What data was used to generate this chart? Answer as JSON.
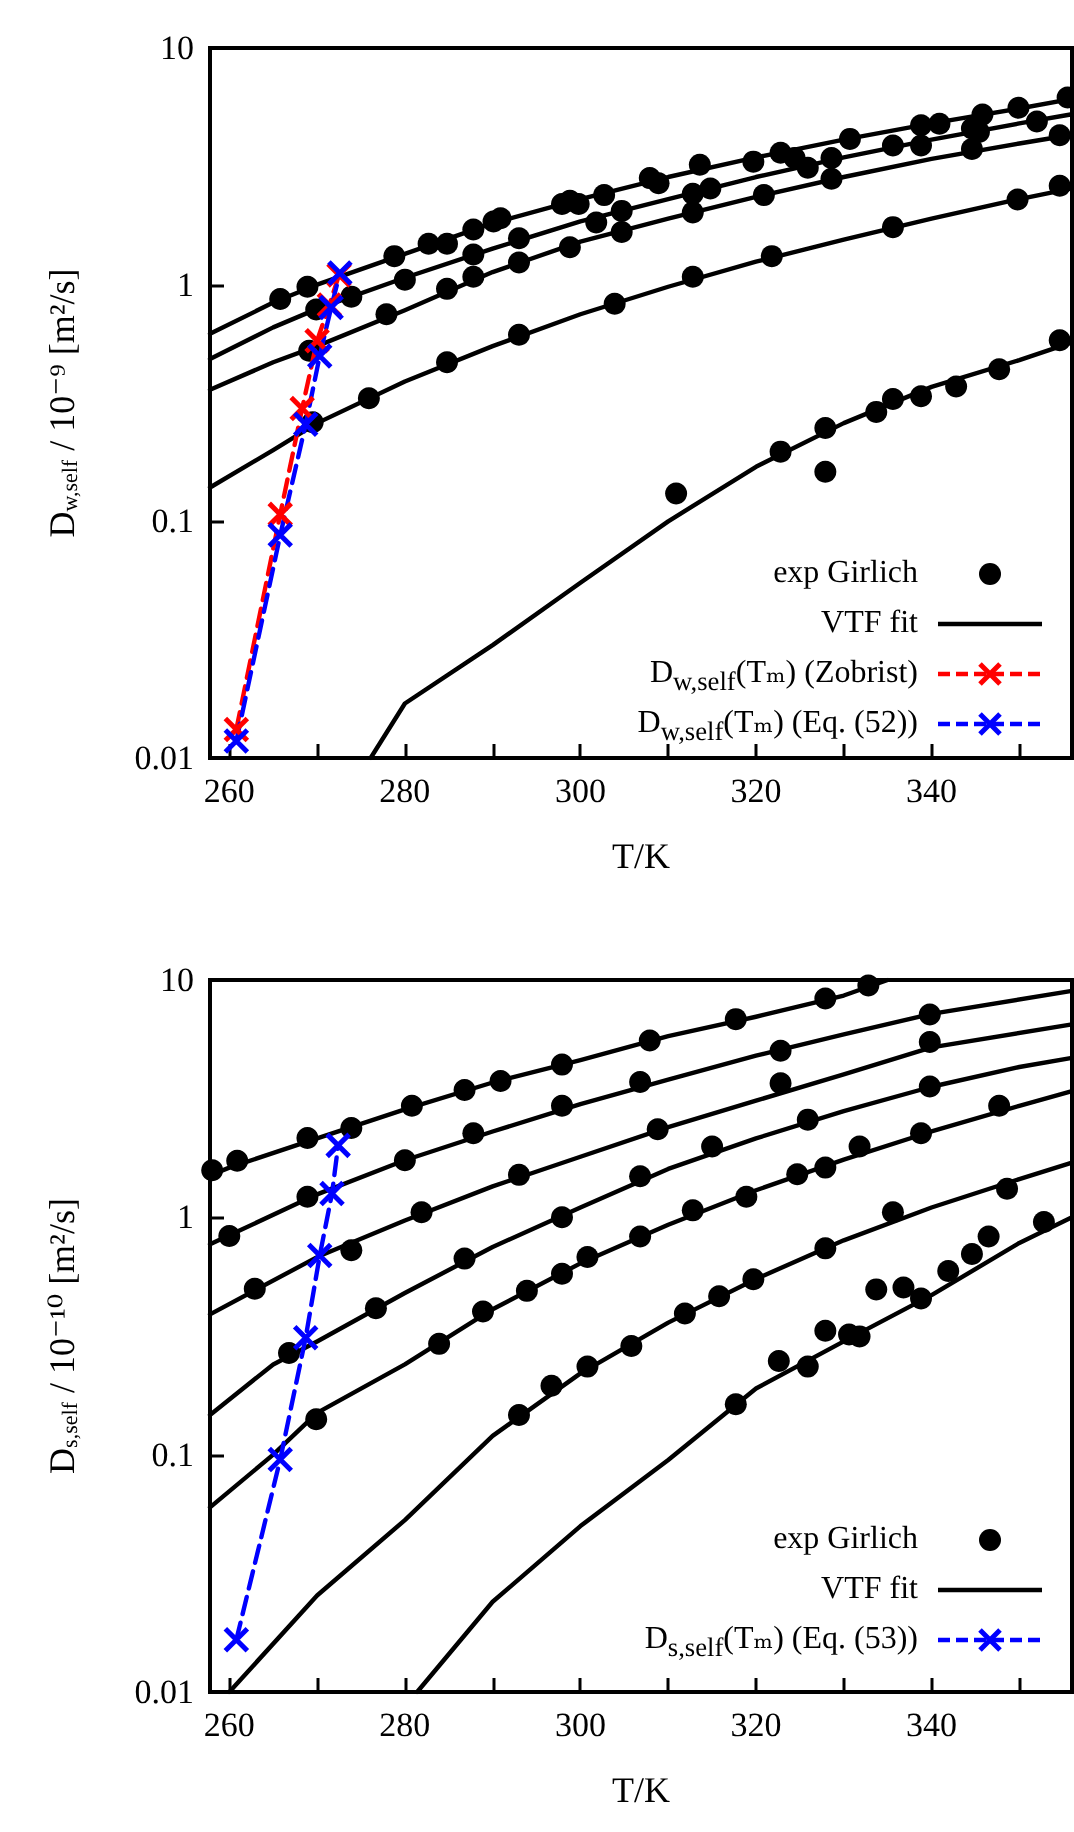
{
  "chart_data": [
    {
      "type": "scatter",
      "xlabel": "T/K",
      "ylabel": "D$_{w,self}$ / 10⁻⁹ [m²/s]",
      "xlim": [
        257.8,
        356
      ],
      "ylim": [
        0.01,
        10
      ],
      "xticks": [
        260,
        {
          "value": 270,
          "label": null
        },
        280,
        {
          "value": 290,
          "label": null
        },
        300,
        {
          "value": 310,
          "label": null
        },
        320,
        {
          "value": 330,
          "label": null
        },
        340,
        {
          "value": 350,
          "label": null
        }
      ],
      "yticks": [
        0.01,
        0.1,
        1,
        10
      ],
      "log": "y",
      "legend": "bottom right",
      "series": [
        {
          "name": "exp Girlich",
          "type": "scatter",
          "color": "#000000",
          "marker": "circle",
          "x": [
            265.8,
            268.9,
            273.9,
            278.8,
            282.7,
            284.8,
            287.8,
            290.1,
            290.9,
            297.9,
            298.8,
            299.8,
            302.7,
            307.9,
            308.9,
            313.6,
            319.7,
            322.8,
            324.4,
            325.9,
            328.6,
            330.7,
            338.8,
            340.9,
            345.4,
            345.8,
            349.9,
            355.5,
            269.9,
            280.0,
            287.8,
            293.0,
            301.8,
            304.7,
            312.8,
            314.8,
            335.6,
            338.8,
            344.6,
            352.0,
            269.1,
            277.9,
            284.8,
            287.8,
            293.0,
            298.8,
            304.7,
            312.8,
            320.9,
            328.6,
            344.6,
            354.6,
            269.5,
            275.9,
            284.8,
            293.0,
            303.9,
            312.8,
            321.8,
            335.6,
            349.8,
            354.6,
            310.9,
            322.8,
            327.9,
            327.9,
            333.7,
            335.6,
            338.8,
            342.8,
            347.7,
            354.6
          ],
          "values": [
            0.87,
            0.98,
            0.89,
            1.32,
            1.49,
            1.49,
            1.71,
            1.85,
            1.91,
            2.19,
            2.26,
            2.19,
            2.39,
            2.82,
            2.68,
            3.21,
            3.31,
            3.61,
            3.43,
            3.12,
            3.43,
            4.13,
            4.72,
            4.79,
            4.42,
            5.23,
            5.59,
            6.18,
            0.785,
            1.05,
            1.34,
            1.57,
            1.83,
            2.05,
            2.42,
            2.55,
            3.87,
            3.87,
            4.57,
            4.89,
            0.526,
            0.75,
            0.96,
            1.08,
            1.24,
            1.44,
            1.67,
            2.02,
            2.39,
            2.8,
            3.74,
            4.28,
            0.262,
            0.331,
            0.47,
            0.614,
            0.83,
            1.08,
            1.32,
            1.75,
            2.29,
            2.62,
            0.131,
            0.197,
            0.162,
            0.248,
            0.29,
            0.329,
            0.338,
            0.371,
            0.439,
            0.582
          ]
        },
        {
          "name": "VTF fit",
          "type": "line",
          "color": "#000000",
          "marker": "none",
          "line_style": "solid",
          "x": [
            257.8,
            265,
            270,
            280,
            290,
            300,
            310,
            320,
            330,
            340,
            350,
            356
          ],
          "values": [
            0.62,
            0.84,
            1.0,
            1.35,
            1.82,
            2.3,
            2.85,
            3.45,
            4.1,
            4.8,
            5.55,
            6.1
          ]
        },
        {
          "type": "line",
          "color": "#000000",
          "marker": "none",
          "line_style": "solid",
          "x": [
            257.8,
            265,
            270,
            280,
            290,
            300,
            310,
            320,
            330,
            340,
            350,
            356
          ],
          "values": [
            0.485,
            0.66,
            0.79,
            1.07,
            1.42,
            1.85,
            2.3,
            2.85,
            3.45,
            4.1,
            4.8,
            5.25
          ]
        },
        {
          "type": "line",
          "color": "#000000",
          "marker": "none",
          "line_style": "solid",
          "x": [
            257.8,
            265,
            270,
            280,
            290,
            300,
            310,
            320,
            330,
            340,
            350,
            356
          ],
          "values": [
            0.36,
            0.47,
            0.55,
            0.78,
            1.13,
            1.52,
            1.9,
            2.35,
            2.85,
            3.4,
            3.95,
            4.3
          ]
        },
        {
          "type": "line",
          "color": "#000000",
          "marker": "none",
          "line_style": "solid",
          "x": [
            257.8,
            265,
            270,
            280,
            290,
            300,
            310,
            320,
            330,
            340,
            350,
            356
          ],
          "values": [
            0.139,
            0.2,
            0.26,
            0.39,
            0.55,
            0.75,
            0.98,
            1.25,
            1.55,
            1.9,
            2.3,
            2.55
          ]
        },
        {
          "type": "line",
          "color": "#000000",
          "marker": "none",
          "line_style": "solid",
          "x": [
            276.1,
            280,
            290,
            300,
            310,
            320,
            330,
            340,
            350,
            356
          ],
          "values": [
            0.01,
            0.017,
            0.03,
            0.055,
            0.1,
            0.17,
            0.26,
            0.37,
            0.48,
            0.57
          ]
        },
        {
          "name": "D$_{w,self}$(Tₘ) (Zobrist)",
          "type": "line",
          "color": "#ff0000",
          "marker": "cross",
          "line_style": "dashed",
          "x": [
            260.8,
            265.8,
            268.3,
            270.0,
            271.4,
            272.5
          ],
          "values": [
            0.0132,
            0.107,
            0.3,
            0.58,
            0.82,
            1.1
          ]
        },
        {
          "name": "D$_{w,self}$(Tₘ) (Eq. (52))",
          "type": "line",
          "color": "#0000ff",
          "marker": "cross",
          "line_style": "dashed",
          "x": [
            260.8,
            265.8,
            268.7,
            270.3,
            271.6,
            272.6
          ],
          "values": [
            0.0118,
            0.0875,
            0.257,
            0.5,
            0.8,
            1.12
          ]
        }
      ]
    },
    {
      "type": "scatter",
      "xlabel": "T/K",
      "ylabel": "D$_{s,self}$ / 10⁻¹⁰ [m²/s]",
      "xlim": [
        257.8,
        356
      ],
      "ylim": [
        0.01,
        10
      ],
      "xticks": [
        260,
        {
          "value": 270,
          "label": null
        },
        280,
        {
          "value": 290,
          "label": null
        },
        300,
        {
          "value": 310,
          "label": null
        },
        320,
        {
          "value": 330,
          "label": null
        },
        340,
        {
          "value": 350,
          "label": null
        }
      ],
      "yticks": [
        0.01,
        0.1,
        1,
        10
      ],
      "log": "y",
      "legend": "bottom right",
      "series": [
        {
          "name": "exp Girlich",
          "type": "scatter",
          "color": "#000000",
          "marker": "circle",
          "x": [
            258.05,
            260.9,
            268.9,
            273.9,
            280.8,
            286.8,
            290.9,
            297.9,
            307.9,
            317.7,
            327.9,
            332.8,
            260.0,
            268.9,
            280.0,
            287.8,
            297.9,
            306.8,
            322.8,
            339.8,
            262.9,
            273.9,
            281.9,
            293.0,
            308.8,
            322.8,
            339.8,
            266.8,
            276.7,
            286.8,
            297.9,
            306.8,
            315.0,
            325.9,
            339.8,
            269.9,
            283.9,
            288.9,
            293.9,
            297.9,
            300.8,
            306.8,
            312.8,
            318.9,
            324.7,
            327.9,
            331.8,
            338.8,
            347.7,
            293.0,
            296.7,
            300.8,
            305.8,
            311.9,
            315.8,
            319.7,
            327.9,
            335.6,
            348.6,
            317.7,
            322.6,
            325.9,
            327.9,
            330.6,
            331.8,
            333.7,
            336.8,
            338.8,
            341.9,
            344.6,
            346.5,
            352.8
          ],
          "values": [
            1.58,
            1.73,
            2.16,
            2.38,
            2.95,
            3.44,
            3.75,
            4.4,
            5.56,
            6.84,
            8.35,
            9.48,
            0.835,
            1.22,
            1.74,
            2.26,
            2.95,
            3.72,
            5.03,
            7.16,
            0.5,
            0.726,
            1.05,
            1.51,
            2.35,
            3.67,
            5.48,
            0.268,
            0.414,
            0.67,
            1.0,
            1.49,
            1.99,
            2.58,
            3.56,
            0.141,
            0.293,
            0.401,
            0.49,
            0.578,
            0.68,
            0.83,
            1.07,
            1.22,
            1.52,
            1.62,
            1.99,
            2.26,
            2.95,
            0.147,
            0.195,
            0.235,
            0.287,
            0.393,
            0.465,
            0.548,
            0.74,
            1.05,
            1.32,
            0.163,
            0.248,
            0.235,
            0.333,
            0.321,
            0.315,
            0.497,
            0.506,
            0.455,
            0.594,
            0.7,
            0.83,
            0.955
          ]
        },
        {
          "name": "VTF fit",
          "type": "line",
          "color": "#000000",
          "marker": "none",
          "line_style": "solid",
          "x": [
            257.8,
            260,
            270,
            280,
            290,
            300,
            310,
            320,
            330,
            335
          ],
          "values": [
            1.5,
            1.62,
            2.15,
            2.85,
            3.7,
            4.6,
            5.8,
            7.0,
            8.6,
            10
          ]
        },
        {
          "type": "line",
          "color": "#000000",
          "marker": "none",
          "line_style": "solid",
          "x": [
            257.8,
            260,
            270,
            280,
            290,
            300,
            310,
            320,
            330,
            340,
            356
          ],
          "values": [
            0.77,
            0.84,
            1.25,
            1.74,
            2.3,
            3.0,
            3.8,
            4.8,
            5.9,
            7.2,
            9.0
          ]
        },
        {
          "type": "line",
          "color": "#000000",
          "marker": "none",
          "line_style": "solid",
          "x": [
            257.8,
            270,
            280,
            290,
            300,
            310,
            320,
            330,
            340,
            356
          ],
          "values": [
            0.39,
            0.68,
            0.97,
            1.35,
            1.8,
            2.4,
            3.1,
            4.0,
            5.2,
            6.5
          ]
        },
        {
          "type": "line",
          "color": "#000000",
          "marker": "none",
          "line_style": "solid",
          "x": [
            257.8,
            265,
            270,
            280,
            290,
            300,
            310,
            320,
            330,
            340,
            350,
            356
          ],
          "values": [
            0.147,
            0.24,
            0.3,
            0.48,
            0.75,
            1.1,
            1.6,
            2.15,
            2.8,
            3.55,
            4.3,
            4.7
          ]
        },
        {
          "type": "line",
          "color": "#000000",
          "marker": "none",
          "line_style": "solid",
          "x": [
            257.8,
            265,
            270,
            280,
            290,
            300,
            310,
            320,
            330,
            340,
            350,
            356
          ],
          "values": [
            0.06,
            0.1,
            0.15,
            0.24,
            0.41,
            0.64,
            0.93,
            1.3,
            1.75,
            2.3,
            2.95,
            3.4
          ]
        },
        {
          "type": "line",
          "color": "#000000",
          "marker": "none",
          "line_style": "solid",
          "x": [
            260,
            270,
            280,
            290,
            300,
            310,
            320,
            330,
            340,
            350,
            356
          ],
          "values": [
            0.01,
            0.0255,
            0.053,
            0.12,
            0.22,
            0.36,
            0.55,
            0.8,
            1.1,
            1.45,
            1.7
          ]
        },
        {
          "type": "line",
          "color": "#000000",
          "marker": "none",
          "line_style": "solid",
          "x": [
            281.4,
            290,
            300,
            310,
            320,
            330,
            340,
            350,
            356
          ],
          "values": [
            0.01,
            0.024,
            0.05,
            0.095,
            0.19,
            0.3,
            0.47,
            0.78,
            1.0
          ]
        },
        {
          "name": "D$_{s,self}$(Tₘ) (Eq. (53))",
          "type": "line",
          "color": "#0000ff",
          "marker": "cross",
          "line_style": "dashed",
          "x": [
            260.8,
            265.8,
            268.7,
            270.3,
            271.7,
            272.4
          ],
          "values": [
            0.0166,
            0.0955,
            0.311,
            0.69,
            1.26,
            2.01
          ]
        }
      ]
    }
  ]
}
